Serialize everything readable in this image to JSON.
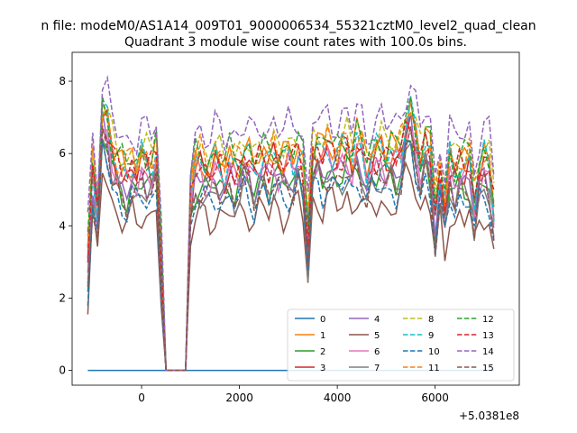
{
  "figure": {
    "suptitle": "n file: modeM0/AS1A14_009T01_9000006534_55321cztM0_level2_quad_clean",
    "title": "Quadrant 3 module wise count rates with 100.0s bins."
  },
  "chart_data": {
    "type": "line",
    "title": "Quadrant 3 module wise count rates with 100.0s bins.",
    "xlabel": "",
    "ylabel": "",
    "x_offset_label": "+5.0381e8",
    "xlim": [
      -1420,
      7720
    ],
    "ylim": [
      -0.41,
      8.8
    ],
    "xticks": [
      0,
      2000,
      4000,
      6000
    ],
    "xtick_labels": [
      "0",
      "2000",
      "4000",
      "6000"
    ],
    "yticks": [
      0,
      2,
      4,
      6,
      8
    ],
    "ytick_labels": [
      "0",
      "2",
      "4",
      "6",
      "8"
    ],
    "grid": false,
    "legend": {
      "location": "lower right",
      "ncol": 4
    },
    "series": [
      {
        "name": "0",
        "color": "#1f77b4",
        "dash": "solid",
        "offset": 0.0
      },
      {
        "name": "1",
        "color": "#ff7f0e",
        "dash": "solid",
        "offset": 0.35
      },
      {
        "name": "2",
        "color": "#2ca02c",
        "dash": "solid",
        "offset": -0.4
      },
      {
        "name": "3",
        "color": "#d62728",
        "dash": "solid",
        "offset": 0.1
      },
      {
        "name": "4",
        "color": "#9467bd",
        "dash": "solid",
        "offset": -0.25
      },
      {
        "name": "5",
        "color": "#8c564b",
        "dash": "solid",
        "offset": -1.2
      },
      {
        "name": "6",
        "color": "#e377c2",
        "dash": "solid",
        "offset": -0.1
      },
      {
        "name": "7",
        "color": "#7f7f7f",
        "dash": "solid",
        "offset": -0.6
      },
      {
        "name": "8",
        "color": "#bcbd22",
        "dash": "dashed",
        "offset": 0.55
      },
      {
        "name": "9",
        "color": "#17becf",
        "dash": "dashed",
        "offset": 0.25
      },
      {
        "name": "10",
        "color": "#1f77b4",
        "dash": "dashed",
        "offset": -0.75
      },
      {
        "name": "11",
        "color": "#ff7f0e",
        "dash": "dashed",
        "offset": 0.4
      },
      {
        "name": "12",
        "color": "#2ca02c",
        "dash": "dashed",
        "offset": 0.45
      },
      {
        "name": "13",
        "color": "#d62728",
        "dash": "dashed",
        "offset": 0.15
      },
      {
        "name": "14",
        "color": "#9467bd",
        "dash": "dashed",
        "offset": 1.1
      },
      {
        "name": "15",
        "color": "#8c564b",
        "dash": "dashed",
        "offset": -0.55
      }
    ],
    "x": [
      -1100,
      -1000,
      -900,
      -800,
      -700,
      -600,
      -500,
      -400,
      -300,
      -200,
      -100,
      0,
      100,
      200,
      300,
      400,
      500,
      600,
      700,
      800,
      900,
      1000,
      1100,
      1200,
      1300,
      1400,
      1500,
      1600,
      1700,
      1800,
      1900,
      2000,
      2100,
      2200,
      2300,
      2400,
      2500,
      2600,
      2700,
      2800,
      2900,
      3000,
      3100,
      3200,
      3300,
      3400,
      3500,
      3600,
      3700,
      3800,
      3900,
      4000,
      4100,
      4200,
      4300,
      4400,
      4500,
      4600,
      4700,
      4800,
      4900,
      5000,
      5100,
      5200,
      5300,
      5400,
      5500,
      5600,
      5700,
      5800,
      5900,
      6000,
      6100,
      6200,
      6300,
      6400,
      6500,
      6600,
      6700,
      6800,
      6900,
      7000,
      7100,
      7200
    ],
    "base_values": [
      3.0,
      5.4,
      4.2,
      6.9,
      6.6,
      5.8,
      5.5,
      5.3,
      5.2,
      5.5,
      5.3,
      5.6,
      5.5,
      5.4,
      5.8,
      3.0,
      0.0,
      0.0,
      0.0,
      0.0,
      0.0,
      4.6,
      5.5,
      5.6,
      5.4,
      5.3,
      5.6,
      5.5,
      5.3,
      5.6,
      5.4,
      5.5,
      5.7,
      5.6,
      5.3,
      5.6,
      5.7,
      5.5,
      5.8,
      5.6,
      5.5,
      5.7,
      5.6,
      5.9,
      5.5,
      3.6,
      5.8,
      5.9,
      5.7,
      6.0,
      5.8,
      5.7,
      5.9,
      6.0,
      5.6,
      6.1,
      5.9,
      5.4,
      5.7,
      5.8,
      5.9,
      5.6,
      5.8,
      5.7,
      5.9,
      6.6,
      6.9,
      6.2,
      5.5,
      6.1,
      5.8,
      4.2,
      5.3,
      4.4,
      5.6,
      5.2,
      5.5,
      5.4,
      5.6,
      4.5,
      5.3,
      5.6,
      5.4,
      4.3
    ],
    "series_0_values": [
      0.0,
      0.0,
      0.0,
      0.0,
      0.0,
      0.0,
      0.0,
      0.0,
      0.0,
      0.0,
      0.0,
      0.0,
      0.0,
      0.0,
      0.0,
      0.0,
      0.0,
      0.0,
      0.0,
      0.0,
      0.0,
      0.0,
      0.0,
      0.0,
      0.0,
      0.0,
      0.0,
      0.0,
      0.0,
      0.0,
      0.0,
      0.0,
      0.0,
      0.0,
      0.0,
      0.0,
      0.0,
      0.0,
      0.0,
      0.0,
      0.0,
      0.0,
      0.0,
      0.0,
      0.0,
      0.0,
      0.0,
      0.0,
      0.0,
      0.0,
      0.0,
      0.0,
      0.0,
      0.0,
      0.0,
      0.0,
      0.0,
      0.0,
      0.0,
      0.0,
      0.0,
      0.0,
      0.0,
      0.0,
      0.0,
      0.0,
      0.0,
      0.0,
      0.0,
      0.0,
      0.0,
      0.0,
      0.0,
      0.0,
      0.0,
      0.0,
      0.0,
      0.0,
      0.0,
      0.0,
      0.0,
      0.0,
      0.0,
      0.0
    ]
  }
}
